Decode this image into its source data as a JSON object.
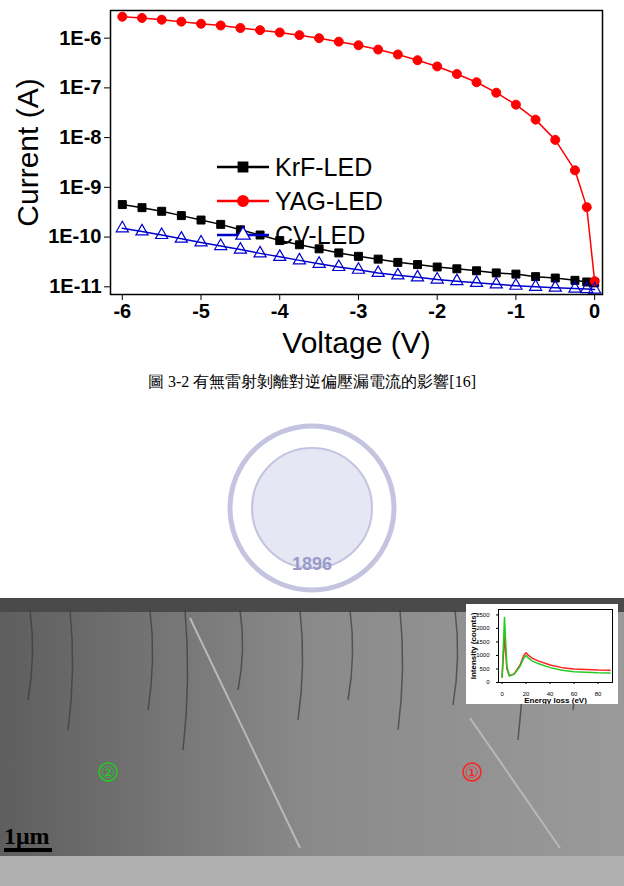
{
  "chart_data": [
    {
      "type": "line",
      "log": "y",
      "grid": false,
      "legend": "center",
      "x_label": "Voltage (V)",
      "y_label": "Current (A)",
      "x": [
        -6,
        -5.75,
        -5.5,
        -5.25,
        -5,
        -4.75,
        -4.5,
        -4.25,
        -4,
        -3.75,
        -3.5,
        -3.25,
        -3,
        -2.75,
        -2.5,
        -2.25,
        -2,
        -1.75,
        -1.5,
        -1.25,
        -1,
        -0.75,
        -0.5,
        -0.25,
        -0.1,
        0
      ],
      "series": [
        {
          "name": "KrF-LED",
          "color": "#000000",
          "marker": "square",
          "values": [
            4.5e-10,
            3.9e-10,
            3.3e-10,
            2.7e-10,
            2.2e-10,
            1.8e-10,
            1.4e-10,
            1.1e-10,
            8.5e-11,
            7e-11,
            5.8e-11,
            4.8e-11,
            4.1e-11,
            3.6e-11,
            3.1e-11,
            2.8e-11,
            2.5e-11,
            2.3e-11,
            2.1e-11,
            1.9e-11,
            1.8e-11,
            1.6e-11,
            1.5e-11,
            1.35e-11,
            1.25e-11,
            1.2e-11
          ]
        },
        {
          "name": "YAG-LED",
          "color": "#ff0000",
          "marker": "circle",
          "values": [
            2.7e-06,
            2.55e-06,
            2.35e-06,
            2.15e-06,
            1.95e-06,
            1.8e-06,
            1.6e-06,
            1.45e-06,
            1.3e-06,
            1.15e-06,
            1e-06,
            8.5e-07,
            7.2e-07,
            5.9e-07,
            4.7e-07,
            3.6e-07,
            2.7e-07,
            1.9e-07,
            1.3e-07,
            8e-08,
            4.6e-08,
            2.3e-08,
            9e-09,
            2.2e-09,
            4e-10,
            1.3e-11
          ]
        },
        {
          "name": "CV-LED",
          "color": "#0000cc",
          "marker": "triangle-open",
          "values": [
            1.5e-10,
            1.3e-10,
            1.1e-10,
            9.3e-11,
            7.8e-11,
            6.6e-11,
            5.6e-11,
            4.7e-11,
            4e-11,
            3.4e-11,
            2.9e-11,
            2.5e-11,
            2.2e-11,
            1.9e-11,
            1.7e-11,
            1.55e-11,
            1.4e-11,
            1.3e-11,
            1.2e-11,
            1.12e-11,
            1.05e-11,
            1e-11,
            9.6e-12,
            9.2e-12,
            9e-12,
            8.8e-12
          ]
        }
      ],
      "xlim": [
        -6.15,
        0.1
      ],
      "xticks": [
        -6,
        -5,
        -4,
        -3,
        -2,
        -1,
        0
      ],
      "ylim": [
        7e-12,
        3.6e-06
      ],
      "yticks": [
        {
          "value": 1e-11,
          "label": "1E-11"
        },
        {
          "value": 1e-10,
          "label": "1E-10"
        },
        {
          "value": 1e-09,
          "label": "1E-9"
        },
        {
          "value": 1e-08,
          "label": "1E-8"
        },
        {
          "value": 1e-07,
          "label": "1E-7"
        },
        {
          "value": 1e-06,
          "label": "1E-6"
        }
      ]
    },
    {
      "type": "line",
      "grid": false,
      "x_label": "Energy loss (eV)",
      "y_label": "Intensity (counts)",
      "x": [
        0,
        2,
        4,
        6,
        10,
        15,
        18,
        20,
        22,
        25,
        30,
        40,
        50,
        60,
        70,
        80,
        90
      ],
      "series": [
        {
          "color": "#ff2020",
          "values": [
            200,
            1700,
            500,
            250,
            320,
            650,
            1000,
            1100,
            1000,
            900,
            800,
            650,
            550,
            500,
            480,
            460,
            450
          ]
        },
        {
          "color": "#22cc22",
          "values": [
            200,
            2400,
            600,
            250,
            300,
            600,
            900,
            1000,
            900,
            800,
            700,
            550,
            450,
            400,
            380,
            360,
            350
          ]
        }
      ],
      "xlim": [
        -3,
        92
      ],
      "xticks": [
        0,
        20,
        40,
        60,
        80
      ],
      "ylim": [
        0,
        2700
      ],
      "yticks": [
        0,
        500,
        1000,
        1500,
        2000,
        2500
      ]
    }
  ],
  "page": {
    "caption": "圖 3-2 有無雷射剝離對逆偏壓漏電流的影響[16]",
    "watermark": "1896",
    "micrograph": {
      "markers": [
        {
          "label": "②",
          "color": "#22cc22"
        },
        {
          "label": "①",
          "color": "#ff2020"
        }
      ],
      "scale_bar": "1μm"
    }
  }
}
